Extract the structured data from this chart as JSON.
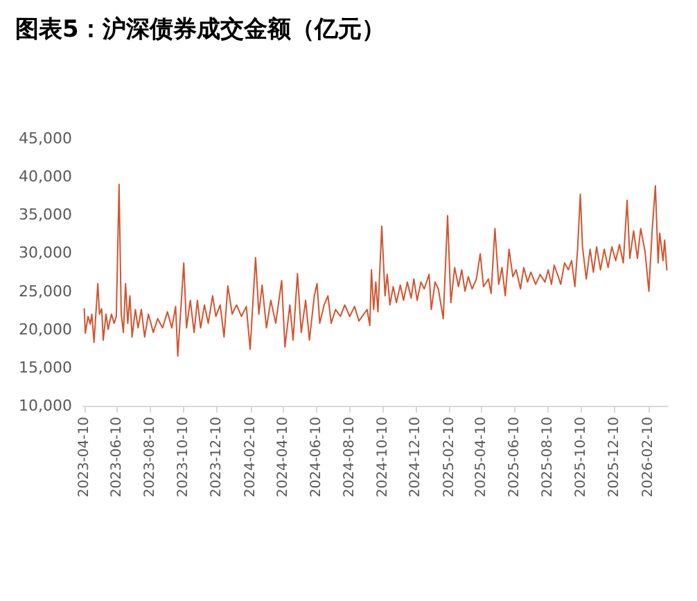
{
  "chart_data": {
    "type": "line",
    "title": "图表5：沪深债券成交金额（亿元）",
    "x": [
      "2023-04-10",
      "2023-04-12",
      "2023-04-17",
      "2023-04-21",
      "2023-04-24",
      "2023-04-28",
      "2023-05-05",
      "2023-05-08",
      "2023-05-12",
      "2023-05-15",
      "2023-05-20",
      "2023-05-24",
      "2023-05-30",
      "2023-06-04",
      "2023-06-08",
      "2023-06-13",
      "2023-06-17",
      "2023-06-21",
      "2023-06-25",
      "2023-06-29",
      "2023-07-03",
      "2023-07-07",
      "2023-07-13",
      "2023-07-18",
      "2023-07-24",
      "2023-07-30",
      "2023-08-06",
      "2023-08-15",
      "2023-08-23",
      "2023-09-01",
      "2023-09-10",
      "2023-09-18",
      "2023-09-25",
      "2023-09-29",
      "2023-10-10",
      "2023-10-15",
      "2023-10-22",
      "2023-10-29",
      "2023-11-04",
      "2023-11-10",
      "2023-11-17",
      "2023-11-24",
      "2023-12-02",
      "2023-12-08",
      "2023-12-16",
      "2023-12-23",
      "2023-12-30",
      "2024-01-07",
      "2024-01-15",
      "2024-01-24",
      "2024-02-02",
      "2024-02-09",
      "2024-02-19",
      "2024-02-25",
      "2024-03-02",
      "2024-03-10",
      "2024-03-18",
      "2024-03-27",
      "2024-04-07",
      "2024-04-13",
      "2024-04-22",
      "2024-04-28",
      "2024-05-06",
      "2024-05-13",
      "2024-05-21",
      "2024-05-28",
      "2024-06-06",
      "2024-06-11",
      "2024-06-16",
      "2024-06-24",
      "2024-07-01",
      "2024-07-07",
      "2024-07-15",
      "2024-07-24",
      "2024-08-01",
      "2024-08-10",
      "2024-08-19",
      "2024-08-27",
      "2024-09-11",
      "2024-09-16",
      "2024-09-19",
      "2024-09-23",
      "2024-09-27",
      "2024-10-01",
      "2024-10-08",
      "2024-10-14",
      "2024-10-18",
      "2024-10-23",
      "2024-10-29",
      "2024-11-04",
      "2024-11-11",
      "2024-11-17",
      "2024-11-24",
      "2024-12-01",
      "2024-12-06",
      "2024-12-12",
      "2024-12-19",
      "2024-12-25",
      "2025-01-03",
      "2025-01-07",
      "2025-01-14",
      "2025-01-20",
      "2025-01-29",
      "2025-02-06",
      "2025-02-12",
      "2025-02-19",
      "2025-02-26",
      "2025-03-04",
      "2025-03-10",
      "2025-03-16",
      "2025-03-23",
      "2025-03-31",
      "2025-04-07",
      "2025-04-13",
      "2025-04-22",
      "2025-04-27",
      "2025-05-04",
      "2025-05-11",
      "2025-05-17",
      "2025-05-23",
      "2025-05-30",
      "2025-06-06",
      "2025-06-12",
      "2025-06-20",
      "2025-06-26",
      "2025-07-03",
      "2025-07-09",
      "2025-07-18",
      "2025-07-26",
      "2025-08-04",
      "2025-08-10",
      "2025-08-16",
      "2025-08-21",
      "2025-08-27",
      "2025-09-02",
      "2025-09-09",
      "2025-09-16",
      "2025-09-22",
      "2025-09-28",
      "2025-10-03",
      "2025-10-08",
      "2025-10-12",
      "2025-10-19",
      "2025-10-26",
      "2025-11-01",
      "2025-11-07",
      "2025-11-14",
      "2025-11-21",
      "2025-11-28",
      "2025-12-05",
      "2025-12-12",
      "2025-12-19",
      "2025-12-26",
      "2026-01-02",
      "2026-01-07",
      "2026-01-14",
      "2026-01-21",
      "2026-01-27",
      "2026-02-04",
      "2026-02-11",
      "2026-02-17",
      "2026-02-23",
      "2026-02-28",
      "2026-03-03",
      "2026-03-09",
      "2026-03-12",
      "2026-03-16"
    ],
    "values": [
      22700,
      19500,
      21700,
      20700,
      22000,
      18300,
      26000,
      22000,
      22700,
      18600,
      22000,
      20000,
      22000,
      20800,
      21700,
      39000,
      22000,
      19600,
      26000,
      20800,
      24400,
      19000,
      22600,
      20200,
      22600,
      19000,
      22000,
      19600,
      21400,
      20200,
      22300,
      20200,
      23000,
      16500,
      28700,
      20200,
      23800,
      19600,
      23800,
      20200,
      23200,
      20800,
      24400,
      21700,
      23200,
      19000,
      25700,
      22000,
      23200,
      21700,
      23000,
      17400,
      29400,
      22000,
      25800,
      20200,
      23800,
      20800,
      26400,
      17700,
      23200,
      18600,
      27300,
      19600,
      23800,
      18600,
      24400,
      26000,
      20800,
      23200,
      24400,
      20800,
      22600,
      21700,
      23200,
      21700,
      23000,
      21100,
      22600,
      20500,
      27800,
      22600,
      26200,
      22300,
      33500,
      24400,
      27200,
      23200,
      25600,
      23500,
      25800,
      23800,
      26200,
      24100,
      26600,
      23800,
      26200,
      25300,
      27200,
      22600,
      26200,
      25300,
      21400,
      34900,
      23500,
      28100,
      25600,
      27800,
      25000,
      26900,
      25300,
      26600,
      29900,
      25600,
      26600,
      24700,
      33200,
      25900,
      28100,
      24400,
      30500,
      26900,
      27800,
      25300,
      28100,
      26200,
      27500,
      25900,
      27200,
      26200,
      27800,
      25900,
      28400,
      27200,
      25900,
      28700,
      27800,
      29000,
      25600,
      30500,
      37700,
      30800,
      26600,
      30500,
      27500,
      30800,
      27800,
      30500,
      28100,
      30800,
      29000,
      31100,
      28700,
      36900,
      29300,
      32900,
      29300,
      33200,
      30200,
      25000,
      32900,
      38800,
      28700,
      32600,
      29000,
      31700,
      27800
    ],
    "color": "#d2542f",
    "xlim": [
      "2023-04-08",
      "2026-03-18"
    ],
    "xticks": [
      "2023-04-10",
      "2023-06-10",
      "2023-08-10",
      "2023-10-10",
      "2023-12-10",
      "2024-02-10",
      "2024-04-10",
      "2024-06-10",
      "2024-08-10",
      "2024-10-10",
      "2024-12-10",
      "2025-02-10",
      "2025-04-10",
      "2025-06-10",
      "2025-08-10",
      "2025-10-10",
      "2025-12-10",
      "2026-02-10"
    ],
    "ylim": [
      10000,
      45000
    ],
    "yticks": [
      {
        "value": 10000,
        "label": "10,000"
      },
      {
        "value": 15000,
        "label": "15,000"
      },
      {
        "value": 20000,
        "label": "20,000"
      },
      {
        "value": 25000,
        "label": "25,000"
      },
      {
        "value": 30000,
        "label": "30,000"
      },
      {
        "value": 35000,
        "label": "35,000"
      },
      {
        "value": 40000,
        "label": "40,000"
      },
      {
        "value": 45000,
        "label": "45,000"
      }
    ],
    "grid": false,
    "marker": "none",
    "line_style": "solid"
  }
}
